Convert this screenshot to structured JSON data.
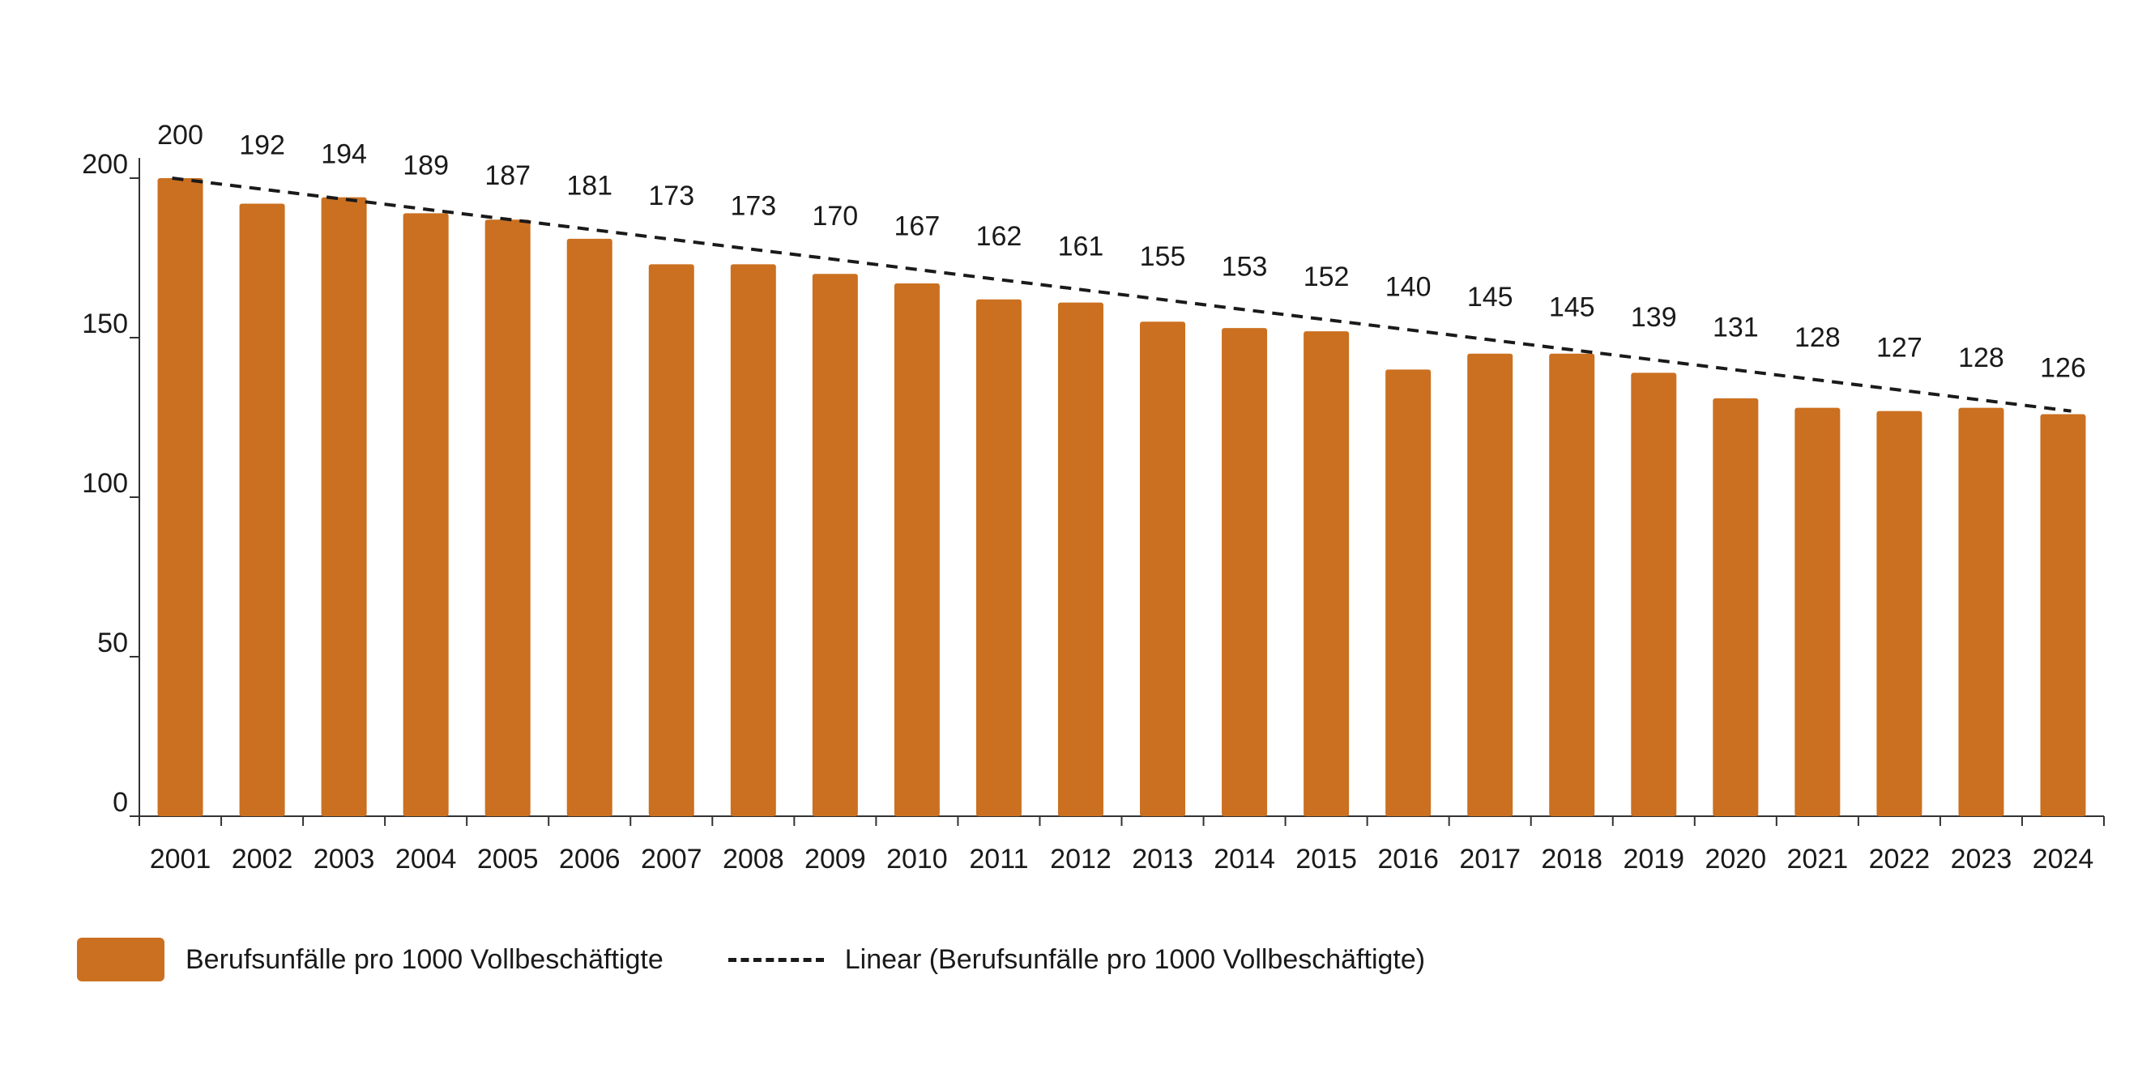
{
  "chart_data": {
    "type": "bar",
    "categories": [
      "2001",
      "2002",
      "2003",
      "2004",
      "2005",
      "2006",
      "2007",
      "2008",
      "2009",
      "2010",
      "2011",
      "2012",
      "2013",
      "2014",
      "2015",
      "2016",
      "2017",
      "2018",
      "2019",
      "2020",
      "2021",
      "2022",
      "2023",
      "2024"
    ],
    "series": [
      {
        "name": "Berufsunfälle pro 1000 Vollbeschäftigte",
        "values": [
          200,
          192,
          194,
          189,
          187,
          181,
          173,
          173,
          170,
          167,
          162,
          161,
          155,
          153,
          152,
          140,
          145,
          145,
          139,
          131,
          128,
          127,
          128,
          126
        ]
      }
    ],
    "trendline": {
      "name": "Linear (Berufsunfälle pro 1000 Vollbeschäftigte)",
      "type": "linear",
      "start": 200,
      "end": 127
    },
    "ylim": [
      0,
      200
    ],
    "yticks": [
      0,
      50,
      100,
      150,
      200
    ],
    "title": "",
    "xlabel": "",
    "ylabel": "",
    "grid": false,
    "legend_position": "bottom-left",
    "colors": {
      "bar": "#CB7020",
      "trend": "#1a1a1a",
      "axis": "#333333"
    }
  },
  "legend": {
    "bar_label": "Berufsunfälle pro 1000 Vollbeschäftigte",
    "trend_label": "Linear (Berufsunfälle pro 1000 Vollbeschäftigte)"
  }
}
